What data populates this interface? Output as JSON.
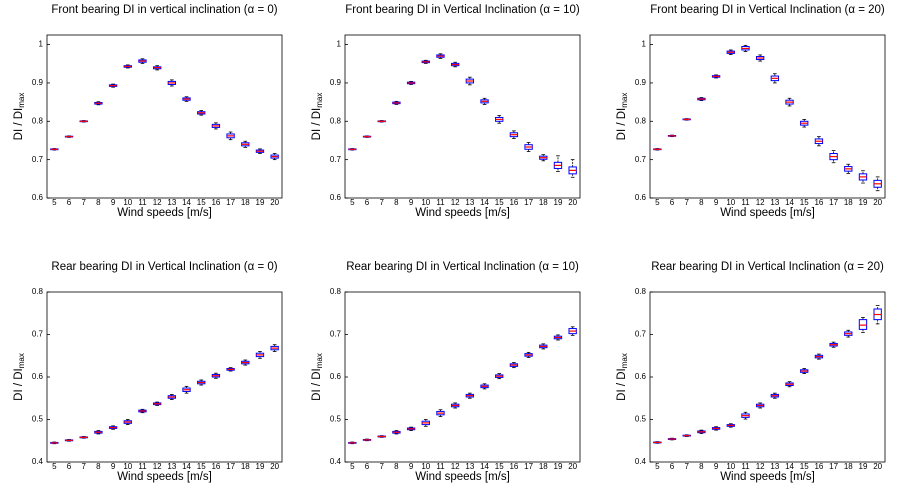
{
  "chart_data": [
    {
      "type": "box",
      "title": "Front bearing DI in vertical inclination (α = 0)",
      "xlabel": "Wind speeds [m/s]",
      "ylabel": "DI / DI",
      "ylabel_sub": "max",
      "categories": [
        "5",
        "6",
        "7",
        "8",
        "9",
        "10",
        "11",
        "12",
        "13",
        "14",
        "15",
        "16",
        "17",
        "18",
        "19",
        "20"
      ],
      "ylim": [
        0.6,
        1.025
      ],
      "yticks": [
        0.6,
        0.7,
        0.8,
        0.9,
        1
      ],
      "box_color": "#0000ff",
      "median_color": "#ff0000",
      "whisker_color": "#000000",
      "low": [
        0.725,
        0.758,
        0.798,
        0.843,
        0.889,
        0.939,
        0.951,
        0.934,
        0.892,
        0.852,
        0.816,
        0.78,
        0.752,
        0.732,
        0.716,
        0.7
      ],
      "q1": [
        0.726,
        0.759,
        0.799,
        0.845,
        0.891,
        0.941,
        0.954,
        0.937,
        0.896,
        0.855,
        0.819,
        0.784,
        0.757,
        0.736,
        0.719,
        0.704
      ],
      "median": [
        0.727,
        0.76,
        0.8,
        0.847,
        0.893,
        0.943,
        0.957,
        0.94,
        0.9,
        0.858,
        0.822,
        0.788,
        0.762,
        0.74,
        0.722,
        0.708
      ],
      "q3": [
        0.728,
        0.761,
        0.801,
        0.849,
        0.895,
        0.945,
        0.96,
        0.942,
        0.904,
        0.861,
        0.825,
        0.792,
        0.767,
        0.744,
        0.725,
        0.712
      ],
      "high": [
        0.729,
        0.762,
        0.802,
        0.851,
        0.897,
        0.947,
        0.963,
        0.945,
        0.908,
        0.864,
        0.828,
        0.796,
        0.772,
        0.748,
        0.728,
        0.716
      ]
    },
    {
      "type": "box",
      "title": "Front bearing DI in Vertical Inclination (α = 10)",
      "xlabel": "Wind speeds [m/s]",
      "ylabel": "DI / DI",
      "ylabel_sub": "max",
      "categories": [
        "5",
        "6",
        "7",
        "8",
        "9",
        "10",
        "11",
        "12",
        "13",
        "14",
        "15",
        "16",
        "17",
        "18",
        "19",
        "20"
      ],
      "ylim": [
        0.6,
        1.025
      ],
      "yticks": [
        0.6,
        0.7,
        0.8,
        0.9,
        1
      ],
      "box_color": "#0000ff",
      "median_color": "#ff0000",
      "whisker_color": "#000000",
      "low": [
        0.725,
        0.758,
        0.798,
        0.844,
        0.896,
        0.951,
        0.964,
        0.942,
        0.895,
        0.844,
        0.795,
        0.755,
        0.721,
        0.697,
        0.669,
        0.654
      ],
      "q1": [
        0.726,
        0.759,
        0.799,
        0.846,
        0.898,
        0.953,
        0.967,
        0.945,
        0.9,
        0.848,
        0.8,
        0.76,
        0.727,
        0.701,
        0.677,
        0.663
      ],
      "median": [
        0.727,
        0.76,
        0.8,
        0.848,
        0.9,
        0.955,
        0.97,
        0.948,
        0.905,
        0.852,
        0.805,
        0.765,
        0.733,
        0.705,
        0.685,
        0.672
      ],
      "q3": [
        0.728,
        0.761,
        0.801,
        0.85,
        0.902,
        0.957,
        0.973,
        0.951,
        0.91,
        0.856,
        0.81,
        0.77,
        0.739,
        0.709,
        0.693,
        0.681
      ],
      "high": [
        0.729,
        0.762,
        0.802,
        0.852,
        0.904,
        0.959,
        0.976,
        0.954,
        0.915,
        0.86,
        0.815,
        0.775,
        0.745,
        0.713,
        0.71,
        0.7
      ]
    },
    {
      "type": "box",
      "title": "Front bearing DI in Vertical Inclination (α = 20)",
      "xlabel": "Wind speeds [m/s]",
      "ylabel": "DI / DI",
      "ylabel_sub": "max",
      "categories": [
        "5",
        "6",
        "7",
        "8",
        "9",
        "10",
        "11",
        "12",
        "13",
        "14",
        "15",
        "16",
        "17",
        "18",
        "19",
        "20"
      ],
      "ylim": [
        0.6,
        1.025
      ],
      "yticks": [
        0.6,
        0.7,
        0.8,
        0.9,
        1
      ],
      "box_color": "#0000ff",
      "median_color": "#ff0000",
      "whisker_color": "#000000",
      "low": [
        0.725,
        0.76,
        0.803,
        0.854,
        0.913,
        0.974,
        0.982,
        0.957,
        0.9,
        0.84,
        0.785,
        0.736,
        0.692,
        0.664,
        0.639,
        0.619
      ],
      "q1": [
        0.726,
        0.761,
        0.804,
        0.856,
        0.915,
        0.977,
        0.986,
        0.961,
        0.906,
        0.845,
        0.79,
        0.742,
        0.7,
        0.67,
        0.647,
        0.628
      ],
      "median": [
        0.727,
        0.762,
        0.805,
        0.858,
        0.917,
        0.98,
        0.99,
        0.965,
        0.912,
        0.85,
        0.795,
        0.748,
        0.708,
        0.676,
        0.655,
        0.637
      ],
      "q3": [
        0.728,
        0.763,
        0.806,
        0.86,
        0.919,
        0.983,
        0.995,
        0.969,
        0.918,
        0.855,
        0.8,
        0.754,
        0.716,
        0.682,
        0.663,
        0.646
      ],
      "high": [
        0.729,
        0.764,
        0.807,
        0.862,
        0.921,
        0.986,
        0.998,
        0.973,
        0.924,
        0.86,
        0.805,
        0.76,
        0.724,
        0.688,
        0.671,
        0.655
      ]
    },
    {
      "type": "box",
      "title": "Rear bearing DI in Vertical Inclination (α = 0)",
      "xlabel": "Wind speeds [m/s]",
      "ylabel": "DI / DI",
      "ylabel_sub": "max",
      "categories": [
        "5",
        "6",
        "7",
        "8",
        "9",
        "10",
        "11",
        "12",
        "13",
        "14",
        "15",
        "16",
        "17",
        "18",
        "19",
        "20"
      ],
      "ylim": [
        0.4,
        0.8
      ],
      "yticks": [
        0.4,
        0.5,
        0.6,
        0.7,
        0.8
      ],
      "box_color": "#0000ff",
      "median_color": "#ff0000",
      "whisker_color": "#000000",
      "low": [
        0.443,
        0.449,
        0.456,
        0.466,
        0.477,
        0.488,
        0.516,
        0.533,
        0.547,
        0.562,
        0.581,
        0.597,
        0.614,
        0.628,
        0.644,
        0.66
      ],
      "q1": [
        0.444,
        0.45,
        0.457,
        0.468,
        0.479,
        0.491,
        0.518,
        0.535,
        0.55,
        0.566,
        0.584,
        0.6,
        0.616,
        0.631,
        0.648,
        0.664
      ],
      "median": [
        0.445,
        0.451,
        0.458,
        0.47,
        0.481,
        0.494,
        0.52,
        0.537,
        0.553,
        0.57,
        0.587,
        0.603,
        0.618,
        0.634,
        0.652,
        0.668
      ],
      "q3": [
        0.446,
        0.452,
        0.459,
        0.472,
        0.483,
        0.497,
        0.522,
        0.539,
        0.556,
        0.574,
        0.59,
        0.606,
        0.62,
        0.637,
        0.656,
        0.672
      ],
      "high": [
        0.447,
        0.453,
        0.46,
        0.474,
        0.485,
        0.5,
        0.524,
        0.541,
        0.559,
        0.578,
        0.593,
        0.609,
        0.622,
        0.64,
        0.66,
        0.676
      ]
    },
    {
      "type": "box",
      "title": "Rear bearing DI in Vertical Inclination (α = 10)",
      "xlabel": "Wind speeds [m/s]",
      "ylabel": "DI / DI",
      "ylabel_sub": "max",
      "categories": [
        "5",
        "6",
        "7",
        "8",
        "9",
        "10",
        "11",
        "12",
        "13",
        "14",
        "15",
        "16",
        "17",
        "18",
        "19",
        "20"
      ],
      "ylim": [
        0.4,
        0.8
      ],
      "yticks": [
        0.4,
        0.5,
        0.6,
        0.7,
        0.8
      ],
      "box_color": "#0000ff",
      "median_color": "#ff0000",
      "whisker_color": "#000000",
      "low": [
        0.443,
        0.45,
        0.458,
        0.466,
        0.474,
        0.484,
        0.507,
        0.527,
        0.55,
        0.572,
        0.596,
        0.622,
        0.646,
        0.666,
        0.687,
        0.698
      ],
      "q1": [
        0.444,
        0.451,
        0.459,
        0.468,
        0.476,
        0.488,
        0.511,
        0.53,
        0.553,
        0.575,
        0.599,
        0.625,
        0.649,
        0.669,
        0.69,
        0.702
      ],
      "median": [
        0.445,
        0.452,
        0.46,
        0.47,
        0.478,
        0.492,
        0.515,
        0.533,
        0.556,
        0.578,
        0.602,
        0.628,
        0.652,
        0.672,
        0.693,
        0.708
      ],
      "q3": [
        0.446,
        0.453,
        0.461,
        0.472,
        0.48,
        0.496,
        0.519,
        0.536,
        0.559,
        0.581,
        0.605,
        0.631,
        0.655,
        0.675,
        0.696,
        0.714
      ],
      "high": [
        0.447,
        0.454,
        0.462,
        0.474,
        0.482,
        0.5,
        0.523,
        0.539,
        0.562,
        0.584,
        0.608,
        0.634,
        0.658,
        0.678,
        0.699,
        0.718
      ]
    },
    {
      "type": "box",
      "title": "Rear bearing DI in Vertical Inclination (α = 20)",
      "xlabel": "Wind speeds [m/s]",
      "ylabel": "DI / DI",
      "ylabel_sub": "max",
      "categories": [
        "5",
        "6",
        "7",
        "8",
        "9",
        "10",
        "11",
        "12",
        "13",
        "14",
        "15",
        "16",
        "17",
        "18",
        "19",
        "20"
      ],
      "ylim": [
        0.4,
        0.8
      ],
      "yticks": [
        0.4,
        0.5,
        0.6,
        0.7,
        0.8
      ],
      "box_color": "#0000ff",
      "median_color": "#ff0000",
      "whisker_color": "#000000",
      "low": [
        0.444,
        0.452,
        0.46,
        0.467,
        0.475,
        0.482,
        0.501,
        0.527,
        0.55,
        0.577,
        0.608,
        0.642,
        0.67,
        0.694,
        0.705,
        0.725
      ],
      "q1": [
        0.445,
        0.453,
        0.461,
        0.469,
        0.477,
        0.484,
        0.505,
        0.53,
        0.553,
        0.58,
        0.611,
        0.645,
        0.673,
        0.698,
        0.712,
        0.735
      ],
      "median": [
        0.446,
        0.454,
        0.462,
        0.471,
        0.479,
        0.486,
        0.509,
        0.533,
        0.556,
        0.583,
        0.614,
        0.648,
        0.676,
        0.702,
        0.722,
        0.747
      ],
      "q3": [
        0.447,
        0.455,
        0.463,
        0.473,
        0.481,
        0.488,
        0.513,
        0.536,
        0.559,
        0.586,
        0.617,
        0.651,
        0.679,
        0.706,
        0.735,
        0.76
      ],
      "high": [
        0.448,
        0.456,
        0.464,
        0.475,
        0.483,
        0.49,
        0.517,
        0.539,
        0.562,
        0.589,
        0.62,
        0.654,
        0.682,
        0.71,
        0.74,
        0.768
      ]
    }
  ]
}
